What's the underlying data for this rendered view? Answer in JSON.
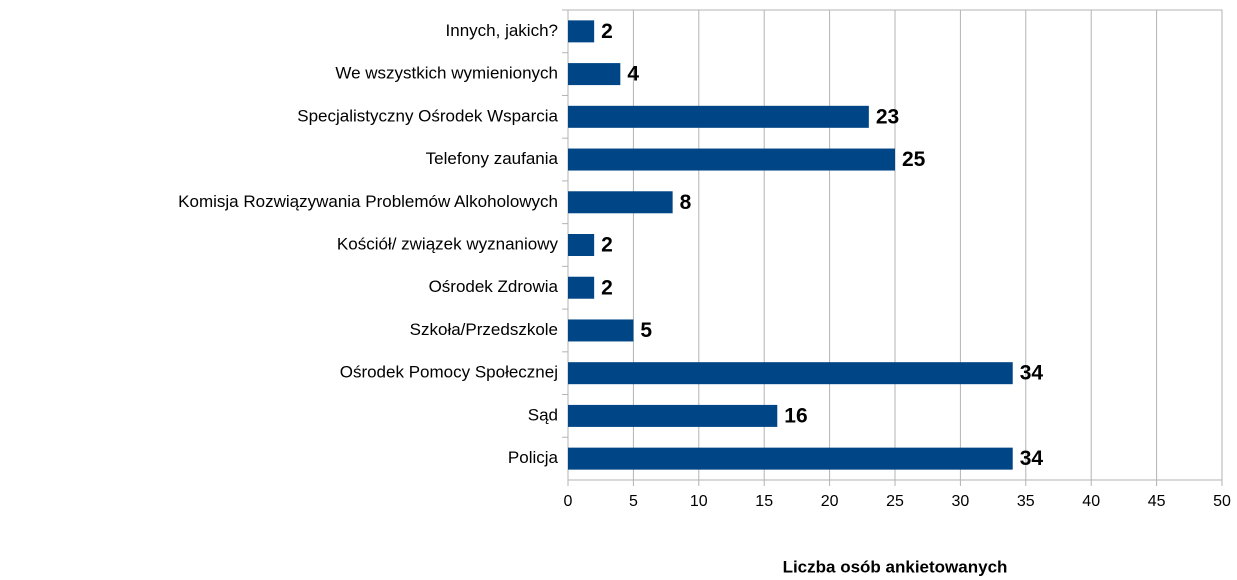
{
  "chart_data": {
    "type": "bar",
    "orientation": "horizontal",
    "x_label": "Liczba osób ankietowanych",
    "categories": [
      "Innych, jakich?",
      "We wszystkich wymienionych",
      "Specjalistyczny Ośrodek Wsparcia",
      "Telefony zaufania",
      "Komisja Rozwiązywania Problemów Alkoholowych",
      "Kościół/ związek wyznaniowy",
      "Ośrodek Zdrowia",
      "Szkoła/Przedszkole",
      "Ośrodek Pomocy Społecznej",
      "Sąd",
      "Policja"
    ],
    "values": [
      2,
      4,
      23,
      25,
      8,
      2,
      2,
      5,
      34,
      16,
      34
    ],
    "color": "#004586",
    "xlim": [
      0,
      50
    ],
    "xticks": [
      0,
      5,
      10,
      15,
      20,
      25,
      30,
      35,
      40,
      45,
      50
    ],
    "grid": true
  }
}
